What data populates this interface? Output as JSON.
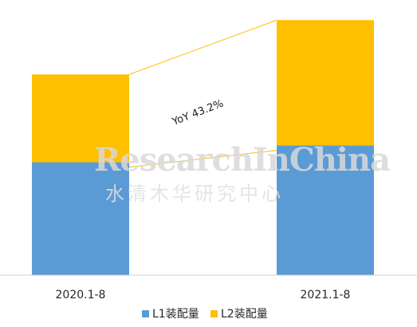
{
  "chart_data": {
    "type": "bar",
    "stacked": true,
    "categories": [
      "2020.1-8",
      "2021.1-8"
    ],
    "series": [
      {
        "name": "L1装配量",
        "values": [
          135,
          155
        ],
        "color": "#5B9BD5"
      },
      {
        "name": "L2装配量",
        "values": [
          105,
          150
        ],
        "color": "#FFC000"
      }
    ],
    "ylim": [
      0,
      310
    ],
    "annotation": "YoY 43.2%",
    "connector_color": "#FFC000",
    "legend_position": "bottom",
    "grid": false
  },
  "watermark": {
    "en": "ResearchInChina",
    "cn": "水清木华研究中心"
  }
}
